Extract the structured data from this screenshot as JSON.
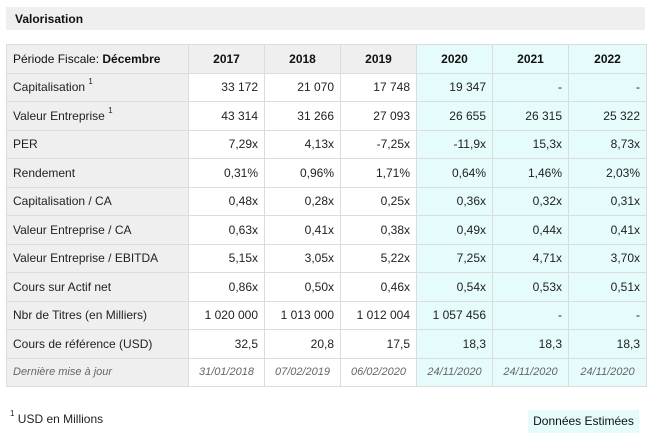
{
  "panel": {
    "title": "Valorisation"
  },
  "header": {
    "period_label": "Période Fiscale: ",
    "period_value": "Décembre",
    "years": [
      "2017",
      "2018",
      "2019",
      "2020",
      "2021",
      "2022"
    ]
  },
  "rows": [
    {
      "label": "Capitalisation",
      "sup": "1",
      "values": [
        "33 172",
        "21 070",
        "17 748",
        "19 347",
        "-",
        "-"
      ]
    },
    {
      "label": "Valeur Entreprise",
      "sup": "1",
      "values": [
        "43 314",
        "31 266",
        "27 093",
        "26 655",
        "26 315",
        "25 322"
      ]
    },
    {
      "label": "PER",
      "sup": "",
      "values": [
        "7,29x",
        "4,13x",
        "-7,25x",
        "-11,9x",
        "15,3x",
        "8,73x"
      ]
    },
    {
      "label": "Rendement",
      "sup": "",
      "values": [
        "0,31%",
        "0,96%",
        "1,71%",
        "0,64%",
        "1,46%",
        "2,03%"
      ]
    },
    {
      "label": "Capitalisation / CA",
      "sup": "",
      "values": [
        "0,48x",
        "0,28x",
        "0,25x",
        "0,36x",
        "0,32x",
        "0,31x"
      ]
    },
    {
      "label": "Valeur Entreprise / CA",
      "sup": "",
      "values": [
        "0,63x",
        "0,41x",
        "0,38x",
        "0,49x",
        "0,44x",
        "0,41x"
      ]
    },
    {
      "label": "Valeur Entreprise / EBITDA",
      "sup": "",
      "values": [
        "5,15x",
        "3,05x",
        "5,22x",
        "7,25x",
        "4,71x",
        "3,70x"
      ]
    },
    {
      "label": "Cours sur Actif net",
      "sup": "",
      "values": [
        "0,86x",
        "0,50x",
        "0,46x",
        "0,54x",
        "0,53x",
        "0,51x"
      ]
    },
    {
      "label": "Nbr de Titres (en Milliers)",
      "sup": "",
      "values": [
        "1 020 000",
        "1 013 000",
        "1 012 004",
        "1 057 456",
        "-",
        "-"
      ]
    },
    {
      "label": "Cours de référence (USD)",
      "sup": "",
      "values": [
        "32,5",
        "20,8",
        "17,5",
        "18,3",
        "18,3",
        "18,3"
      ]
    },
    {
      "label": "Dernière mise à jour",
      "sup": "",
      "values": [
        "31/01/2018",
        "07/02/2019",
        "06/02/2020",
        "24/11/2020",
        "24/11/2020",
        "24/11/2020"
      ]
    }
  ],
  "footer": {
    "footnote_sup": "1",
    "footnote_text": " USD en Millions",
    "estimates_label": "Données Estimées"
  },
  "colors": {
    "estimate_bg": "#e6fbfb",
    "label_bg": "#efefef",
    "border": "#dcdcdc"
  }
}
